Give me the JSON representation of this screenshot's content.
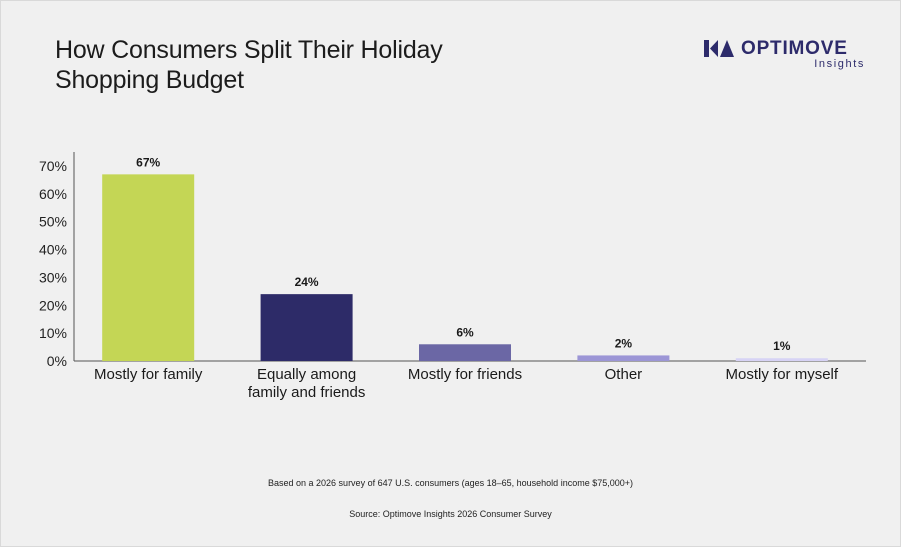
{
  "header": {
    "title_line1": "How Consumers Split Their Holiday",
    "title_line2": "Shopping Budget"
  },
  "brand": {
    "name": "OPTIMOVE",
    "sub": "Insights",
    "logo_icon": "optimove-logo-icon",
    "color": "#2d2b6b"
  },
  "chart_data": {
    "type": "bar",
    "title": "How Consumers Split Their Holiday Shopping Budget",
    "categories": [
      [
        "Mostly for family"
      ],
      [
        "Equally among",
        "family and friends"
      ],
      [
        "Mostly for friends"
      ],
      [
        "Other"
      ],
      [
        "Mostly for myself"
      ]
    ],
    "values": [
      67,
      24,
      6,
      2,
      1
    ],
    "data_labels": [
      "67%",
      "24%",
      "6%",
      "2%",
      "1%"
    ],
    "colors": [
      "#c4d655",
      "#2d2b68",
      "#6b67a5",
      "#9c96d6",
      "#d7d3f5"
    ],
    "ylim": [
      0,
      70
    ],
    "yticks": [
      0,
      10,
      20,
      30,
      40,
      50,
      60,
      70
    ],
    "ytick_labels": [
      "0%",
      "10%",
      "20%",
      "30%",
      "40%",
      "50%",
      "60%",
      "70%"
    ],
    "grid": false,
    "legend": "none"
  },
  "footer": {
    "survey_note": "Based on a 2026 survey of 647 U.S. consumers (ages 18–65, household income $75,000+)",
    "source_note": "Source: Optimove Insights 2026 Consumer Survey"
  }
}
